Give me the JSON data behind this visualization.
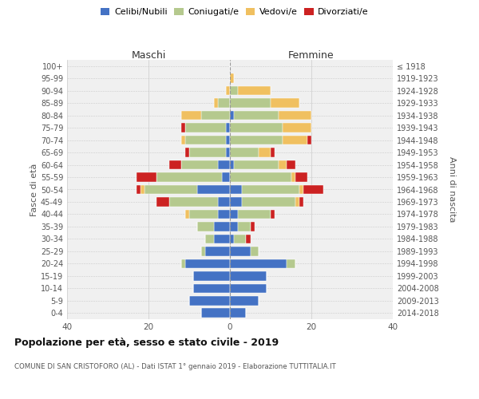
{
  "age_groups": [
    "0-4",
    "5-9",
    "10-14",
    "15-19",
    "20-24",
    "25-29",
    "30-34",
    "35-39",
    "40-44",
    "45-49",
    "50-54",
    "55-59",
    "60-64",
    "65-69",
    "70-74",
    "75-79",
    "80-84",
    "85-89",
    "90-94",
    "95-99",
    "100+"
  ],
  "birth_years": [
    "2014-2018",
    "2009-2013",
    "2004-2008",
    "1999-2003",
    "1994-1998",
    "1989-1993",
    "1984-1988",
    "1979-1983",
    "1974-1978",
    "1969-1973",
    "1964-1968",
    "1959-1963",
    "1954-1958",
    "1949-1953",
    "1944-1948",
    "1939-1943",
    "1934-1938",
    "1929-1933",
    "1924-1928",
    "1919-1923",
    "≤ 1918"
  ],
  "colors": {
    "celibi": "#4472c4",
    "coniugati": "#b5c98e",
    "vedovi": "#f0c060",
    "divorziati": "#cc2222"
  },
  "maschi": {
    "celibi": [
      7,
      10,
      9,
      9,
      11,
      6,
      4,
      4,
      3,
      3,
      8,
      2,
      3,
      1,
      1,
      1,
      0,
      0,
      0,
      0,
      0
    ],
    "coniugati": [
      0,
      0,
      0,
      0,
      1,
      1,
      2,
      4,
      7,
      12,
      13,
      16,
      9,
      9,
      10,
      10,
      7,
      3,
      0,
      0,
      0
    ],
    "vedovi": [
      0,
      0,
      0,
      0,
      0,
      0,
      0,
      0,
      1,
      0,
      1,
      0,
      0,
      0,
      1,
      0,
      5,
      1,
      1,
      0,
      0
    ],
    "divorziati": [
      0,
      0,
      0,
      0,
      0,
      0,
      0,
      0,
      0,
      3,
      1,
      5,
      3,
      1,
      0,
      1,
      0,
      0,
      0,
      0,
      0
    ]
  },
  "femmine": {
    "celibi": [
      4,
      7,
      9,
      9,
      14,
      5,
      1,
      2,
      2,
      3,
      3,
      0,
      1,
      0,
      0,
      0,
      1,
      0,
      0,
      0,
      0
    ],
    "coniugati": [
      0,
      0,
      0,
      0,
      2,
      2,
      3,
      3,
      8,
      13,
      14,
      15,
      11,
      7,
      13,
      13,
      11,
      10,
      2,
      0,
      0
    ],
    "vedovi": [
      0,
      0,
      0,
      0,
      0,
      0,
      0,
      0,
      0,
      1,
      1,
      1,
      2,
      3,
      6,
      7,
      8,
      7,
      8,
      1,
      0
    ],
    "divorziati": [
      0,
      0,
      0,
      0,
      0,
      0,
      1,
      1,
      1,
      1,
      5,
      3,
      2,
      1,
      1,
      0,
      0,
      0,
      0,
      0,
      0
    ]
  },
  "xlim": 40,
  "title": "Popolazione per età, sesso e stato civile - 2019",
  "subtitle": "COMUNE DI SAN CRISTOFORO (AL) - Dati ISTAT 1° gennaio 2019 - Elaborazione TUTTITALIA.IT",
  "ylabel_left": "Fasce di età",
  "ylabel_right": "Anni di nascita",
  "header_maschi": "Maschi",
  "header_femmine": "Femmine",
  "legend_labels": [
    "Celibi/Nubili",
    "Coniugati/e",
    "Vedovi/e",
    "Divorziati/e"
  ],
  "bg_color": "#ffffff",
  "plot_bg": "#f0f0f0"
}
